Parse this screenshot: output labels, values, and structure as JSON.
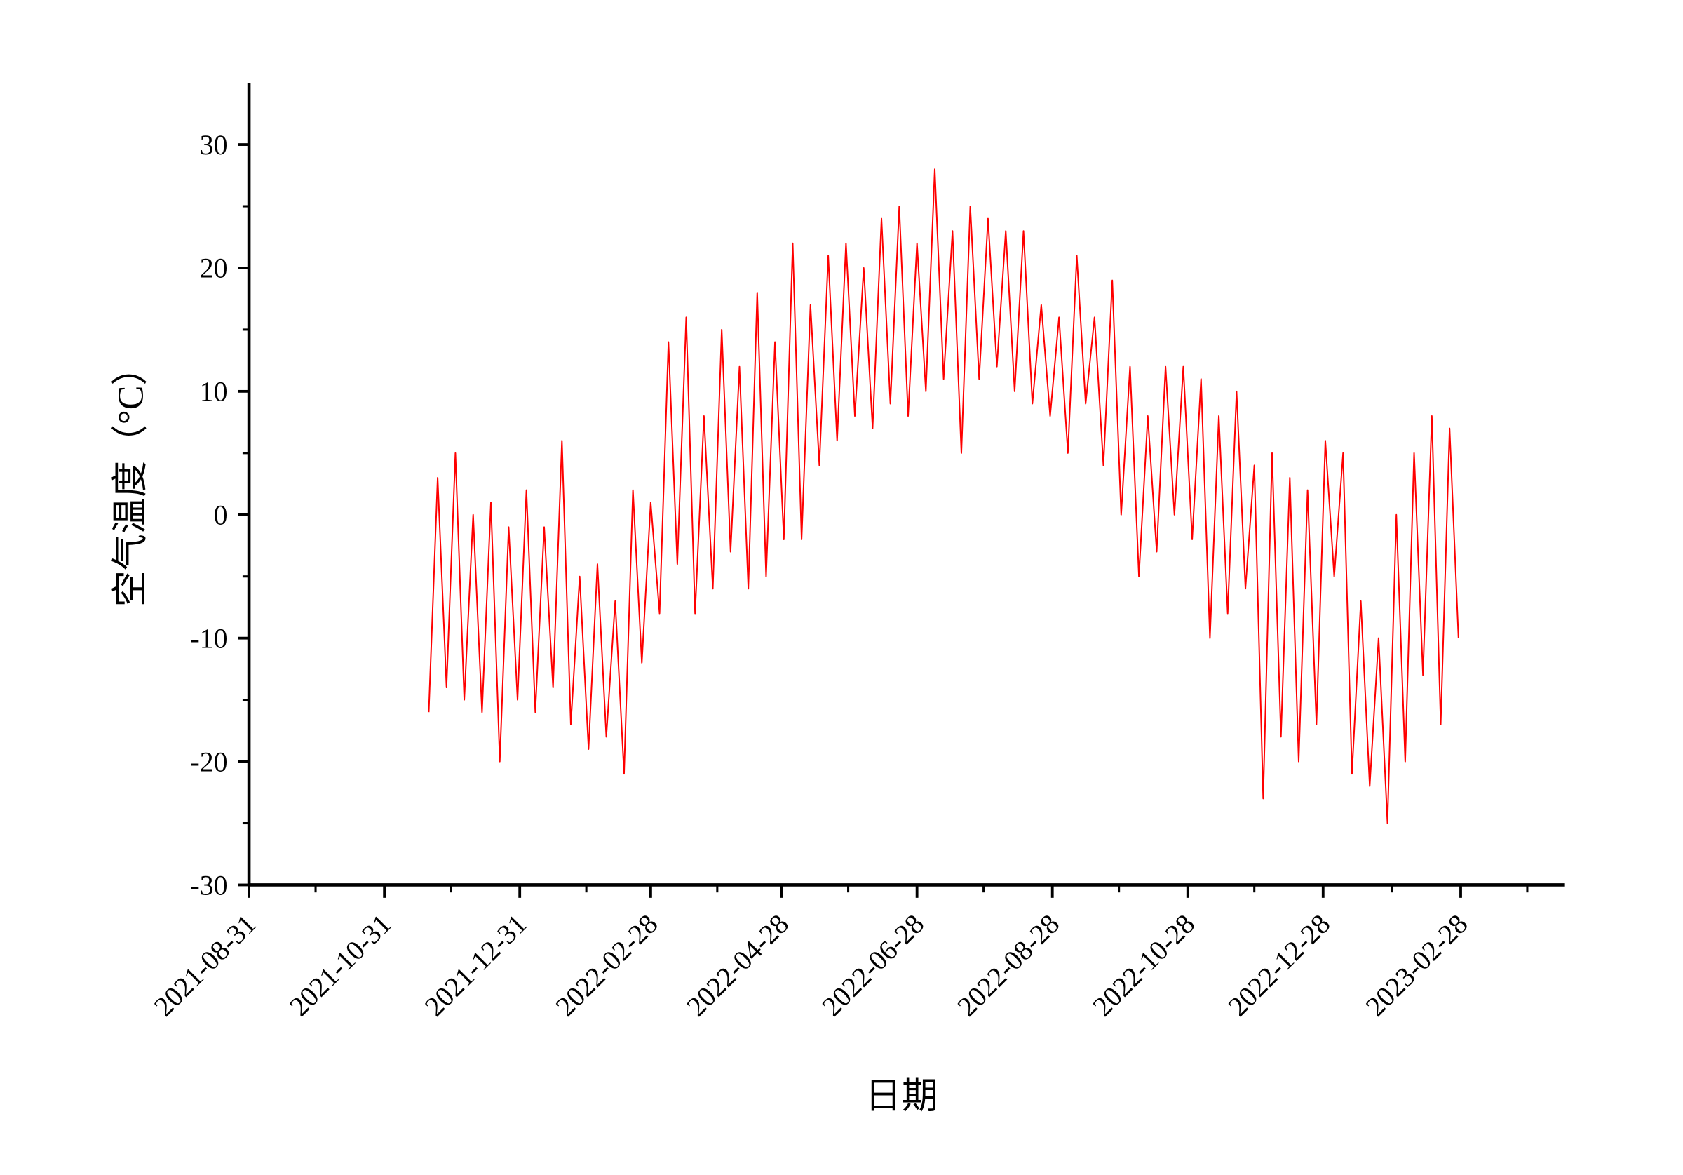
{
  "chart_data": {
    "type": "line",
    "x_label": "日期",
    "y_label": "空气温度（°C）",
    "color": "#ff0000",
    "xlim": [
      "2021-08-31",
      "2023-04-15"
    ],
    "xticks": [
      "2021-08-31",
      "2021-10-31",
      "2021-12-31",
      "2022-02-28",
      "2022-04-28",
      "2022-06-28",
      "2022-08-28",
      "2022-10-28",
      "2022-12-28",
      "2023-02-28"
    ],
    "xminorticks": [
      "2021-09-30",
      "2021-11-30",
      "2022-01-30",
      "2022-03-30",
      "2022-05-28",
      "2022-07-28",
      "2022-09-27",
      "2022-11-27",
      "2023-01-28",
      "2023-03-30"
    ],
    "ylim": [
      -30,
      35
    ],
    "yticks": [
      -30,
      -20,
      -10,
      0,
      10,
      20,
      30
    ],
    "yminorticks": [
      -25,
      -15,
      -5,
      5,
      15,
      25
    ],
    "x": [
      "2021-11-20",
      "2021-11-24",
      "2021-11-28",
      "2021-12-02",
      "2021-12-06",
      "2021-12-10",
      "2021-12-14",
      "2021-12-18",
      "2021-12-22",
      "2021-12-26",
      "2021-12-30",
      "2022-01-03",
      "2022-01-07",
      "2022-01-11",
      "2022-01-15",
      "2022-01-19",
      "2022-01-23",
      "2022-01-27",
      "2022-01-31",
      "2022-02-04",
      "2022-02-08",
      "2022-02-12",
      "2022-02-16",
      "2022-02-20",
      "2022-02-24",
      "2022-02-28",
      "2022-03-04",
      "2022-03-08",
      "2022-03-12",
      "2022-03-16",
      "2022-03-20",
      "2022-03-24",
      "2022-03-28",
      "2022-04-01",
      "2022-04-05",
      "2022-04-09",
      "2022-04-13",
      "2022-04-17",
      "2022-04-21",
      "2022-04-25",
      "2022-04-29",
      "2022-05-03",
      "2022-05-07",
      "2022-05-11",
      "2022-05-15",
      "2022-05-19",
      "2022-05-23",
      "2022-05-27",
      "2022-05-31",
      "2022-06-04",
      "2022-06-08",
      "2022-06-12",
      "2022-06-16",
      "2022-06-20",
      "2022-06-24",
      "2022-06-28",
      "2022-07-02",
      "2022-07-06",
      "2022-07-10",
      "2022-07-14",
      "2022-07-18",
      "2022-07-22",
      "2022-07-26",
      "2022-07-30",
      "2022-08-03",
      "2022-08-07",
      "2022-08-11",
      "2022-08-15",
      "2022-08-19",
      "2022-08-23",
      "2022-08-27",
      "2022-08-31",
      "2022-09-04",
      "2022-09-08",
      "2022-09-12",
      "2022-09-16",
      "2022-09-20",
      "2022-09-24",
      "2022-09-28",
      "2022-10-02",
      "2022-10-06",
      "2022-10-10",
      "2022-10-14",
      "2022-10-18",
      "2022-10-22",
      "2022-10-26",
      "2022-10-30",
      "2022-11-03",
      "2022-11-07",
      "2022-11-11",
      "2022-11-15",
      "2022-11-19",
      "2022-11-23",
      "2022-11-27",
      "2022-12-01",
      "2022-12-05",
      "2022-12-09",
      "2022-12-13",
      "2022-12-17",
      "2022-12-21",
      "2022-12-25",
      "2022-12-29",
      "2023-01-02",
      "2023-01-06",
      "2023-01-10",
      "2023-01-14",
      "2023-01-18",
      "2023-01-22",
      "2023-01-26",
      "2023-01-30",
      "2023-02-03",
      "2023-02-07",
      "2023-02-11",
      "2023-02-15",
      "2023-02-19",
      "2023-02-23",
      "2023-02-27"
    ],
    "values": [
      -16,
      3,
      -14,
      5,
      -15,
      0,
      -16,
      1,
      -20,
      -1,
      -15,
      2,
      -16,
      -1,
      -14,
      6,
      -17,
      -5,
      -19,
      -4,
      -18,
      -7,
      -21,
      2,
      -12,
      1,
      -8,
      14,
      -4,
      16,
      -8,
      8,
      -6,
      15,
      -3,
      12,
      -6,
      18,
      -5,
      14,
      -2,
      22,
      -2,
      17,
      4,
      21,
      6,
      22,
      8,
      20,
      7,
      24,
      9,
      25,
      8,
      22,
      10,
      28,
      11,
      23,
      5,
      25,
      11,
      24,
      12,
      23,
      10,
      23,
      9,
      17,
      8,
      16,
      5,
      21,
      9,
      16,
      4,
      19,
      0,
      12,
      -5,
      8,
      -3,
      12,
      0,
      12,
      -2,
      11,
      -10,
      8,
      -8,
      10,
      -6,
      4,
      -23,
      5,
      -18,
      3,
      -20,
      2,
      -17,
      6,
      -5,
      5,
      -21,
      -7,
      -22,
      -10,
      -25,
      0,
      -20,
      5,
      -13,
      8,
      -17,
      7,
      -10
    ]
  }
}
